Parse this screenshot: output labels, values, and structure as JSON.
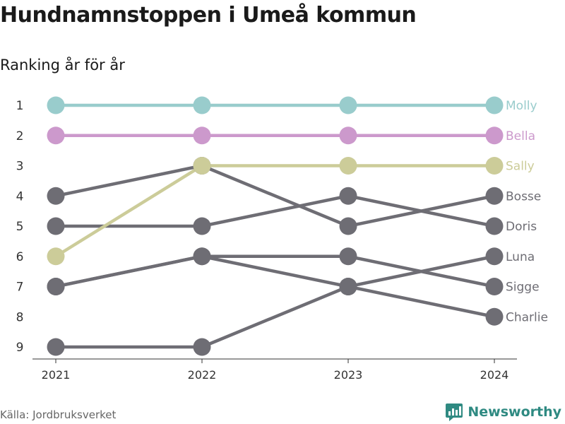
{
  "header": {
    "title": "Hundnamnstoppen i Umeå kommun",
    "subtitle": "Ranking år för år"
  },
  "footer": {
    "source": "Källa: Jordbruksverket",
    "brand": "Newsworthy"
  },
  "colors": {
    "molly": "#99cccc",
    "bella": "#cc99cc",
    "sally": "#cccc99",
    "grey": "#6e6d74",
    "axis": "#333333",
    "brand": "#2f8a82"
  },
  "chart_data": {
    "type": "line",
    "title": "Hundnamnstoppen i Umeå kommun",
    "subtitle": "Ranking år för år",
    "x": [
      "2021",
      "2022",
      "2023",
      "2024"
    ],
    "y_ticks": [
      1,
      2,
      3,
      4,
      5,
      6,
      7,
      8,
      9
    ],
    "ylim": [
      1,
      9
    ],
    "y_reversed": true,
    "grid": false,
    "legend": "direct labels at right end of lines",
    "series": [
      {
        "name": "Bosse",
        "values": [
          4,
          3,
          5,
          4
        ],
        "color": "#6e6d74"
      },
      {
        "name": "Doris",
        "values": [
          5,
          5,
          4,
          5
        ],
        "color": "#6e6d74"
      },
      {
        "name": "Luna",
        "values": [
          9,
          9,
          7,
          6
        ],
        "color": "#6e6d74"
      },
      {
        "name": "Sigge",
        "values": [
          7,
          6,
          6,
          7
        ],
        "color": "#6e6d74"
      },
      {
        "name": "Charlie",
        "values": [
          7,
          6,
          7,
          8
        ],
        "color": "#6e6d74"
      },
      {
        "name": "Molly",
        "values": [
          1,
          1,
          1,
          1
        ],
        "color": "#99cccc"
      },
      {
        "name": "Bella",
        "values": [
          2,
          2,
          2,
          2
        ],
        "color": "#cc99cc"
      },
      {
        "name": "Sally",
        "values": [
          6,
          3,
          3,
          3
        ],
        "color": "#cccc99"
      }
    ]
  }
}
